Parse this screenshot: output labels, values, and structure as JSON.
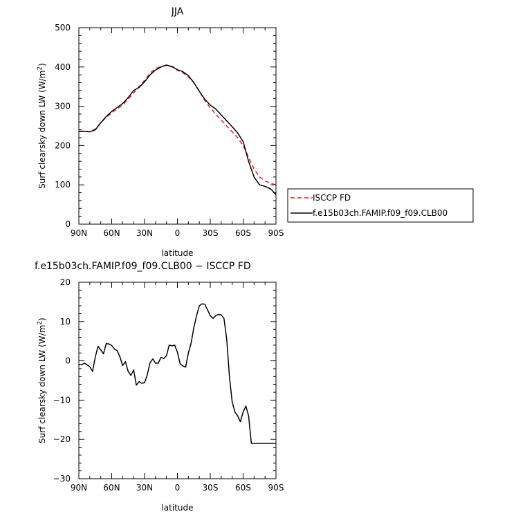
{
  "chart_data": [
    {
      "type": "line",
      "title": "JJA",
      "xlabel": "latitude",
      "ylabel": "Surf clearsky down LW (W/m²)",
      "ylabel_main": "Surf clearsky down LW (W/m",
      "ylabel_sup": "2",
      "ylabel_end": ")",
      "xlim": [
        90,
        -90
      ],
      "ylim": [
        0,
        500
      ],
      "xticks": [
        90,
        60,
        30,
        0,
        -30,
        -60,
        -90
      ],
      "xtick_labels": [
        "90N",
        "60N",
        "30N",
        "0",
        "30S",
        "60S",
        "90S"
      ],
      "yticks": [
        0,
        100,
        200,
        300,
        400,
        500
      ],
      "ytick_labels": [
        "0",
        "100",
        "200",
        "300",
        "400",
        "500"
      ],
      "grid": false,
      "legend_position": "right",
      "series": [
        {
          "name": "ISCCP FD",
          "color": "#e31a1c",
          "style": "dashed",
          "x": [
            90,
            85,
            80,
            75,
            70,
            65,
            60,
            55,
            50,
            45,
            40,
            35,
            30,
            25,
            20,
            15,
            10,
            5,
            0,
            -5,
            -10,
            -15,
            -20,
            -25,
            -30,
            -35,
            -40,
            -45,
            -50,
            -55,
            -60,
            -65,
            -70,
            -75,
            -80,
            -85,
            -90
          ],
          "y": [
            236,
            237,
            235,
            242,
            258,
            272,
            283,
            293,
            303,
            318,
            334,
            350,
            366,
            384,
            396,
            401,
            404,
            400,
            392,
            385,
            375,
            360,
            338,
            315,
            296,
            280,
            265,
            250,
            235,
            220,
            200,
            170,
            140,
            120,
            110,
            104,
            100
          ]
        },
        {
          "name": "f.e15b03ch.FAMIP.f09_f09.CLB00",
          "color": "#000000",
          "style": "solid",
          "x": [
            90,
            85,
            80,
            75,
            70,
            65,
            60,
            55,
            50,
            45,
            40,
            35,
            30,
            25,
            20,
            15,
            10,
            5,
            0,
            -5,
            -10,
            -15,
            -20,
            -25,
            -30,
            -35,
            -40,
            -45,
            -50,
            -55,
            -60,
            -65,
            -70,
            -75,
            -80,
            -85,
            -90
          ],
          "y": [
            236,
            236,
            235,
            240,
            258,
            274,
            287,
            297,
            307,
            322,
            340,
            348,
            362,
            380,
            392,
            400,
            405,
            401,
            393,
            388,
            378,
            360,
            338,
            318,
            303,
            293,
            278,
            263,
            248,
            232,
            210,
            160,
            120,
            100,
            96,
            90,
            75
          ]
        }
      ]
    },
    {
      "type": "line",
      "title": "f.e15b03ch.FAMIP.f09_f09.CLB00 − ISCCP FD",
      "xlabel": "latitude",
      "ylabel": "Surf clearsky down LW (W/m²)",
      "ylabel_main": "Surf clearsky down LW (W/m",
      "ylabel_sup": "2",
      "ylabel_end": ")",
      "xlim": [
        90,
        -90
      ],
      "ylim": [
        -30,
        20
      ],
      "xticks": [
        90,
        60,
        30,
        0,
        -30,
        -60,
        -90
      ],
      "xtick_labels": [
        "90N",
        "60N",
        "30N",
        "0",
        "30S",
        "60S",
        "90S"
      ],
      "yticks": [
        -30,
        -20,
        -10,
        0,
        10,
        20
      ],
      "ytick_labels": [
        "−30",
        "−20",
        "−10",
        "0",
        "10",
        "20"
      ],
      "grid": false,
      "series": [
        {
          "color": "#000000",
          "style": "solid",
          "x": [
            90,
            87.5,
            85,
            82.5,
            80,
            77.5,
            75,
            72.5,
            70,
            67.5,
            65,
            62.5,
            60,
            57.5,
            55,
            52.5,
            50,
            47.5,
            45,
            42.5,
            40,
            37.5,
            35,
            32.5,
            30,
            27.5,
            25,
            22.5,
            20,
            17.5,
            15,
            12.5,
            10,
            7.5,
            5,
            2.5,
            0,
            -2.5,
            -5,
            -7.5,
            -10,
            -12.5,
            -15,
            -17.5,
            -20,
            -22.5,
            -25,
            -27.5,
            -30,
            -32.5,
            -35,
            -37.5,
            -40,
            -42.5,
            -45,
            -47.5,
            -50,
            -52.5,
            -55,
            -57.5,
            -60,
            -62.5,
            -65,
            -67.5,
            -70,
            -72.5,
            -75,
            -77.5,
            -80,
            -82.5,
            -85,
            -87.5,
            -90
          ],
          "y": [
            -1.0,
            -1.0,
            -0.6,
            -1.0,
            -1.5,
            -2.7,
            1.0,
            3.7,
            2.8,
            1.8,
            4.4,
            4.3,
            3.9,
            3.0,
            2.6,
            1.0,
            -1.2,
            -0.2,
            -2.7,
            -3.7,
            -2.3,
            -6.2,
            -5.3,
            -5.7,
            -5.6,
            -3.5,
            -0.5,
            0.5,
            -0.6,
            -0.6,
            0.9,
            0.6,
            1.3,
            4.0,
            3.8,
            4.0,
            2.2,
            -0.8,
            -1.3,
            -1.6,
            2.0,
            4.5,
            8.5,
            11.5,
            14.0,
            14.5,
            14.4,
            13.0,
            11.5,
            10.8,
            11.5,
            11.8,
            11.7,
            10.8,
            5.5,
            -4.0,
            -10.5,
            -13.0,
            -14.0,
            -15.5,
            -13.0,
            -11.5,
            -14.0,
            -21.0,
            -21.0,
            -21.0,
            -21.0,
            -21.0,
            -21.0,
            -21.0,
            -21.0,
            -21.0,
            -21.0
          ]
        }
      ]
    }
  ]
}
